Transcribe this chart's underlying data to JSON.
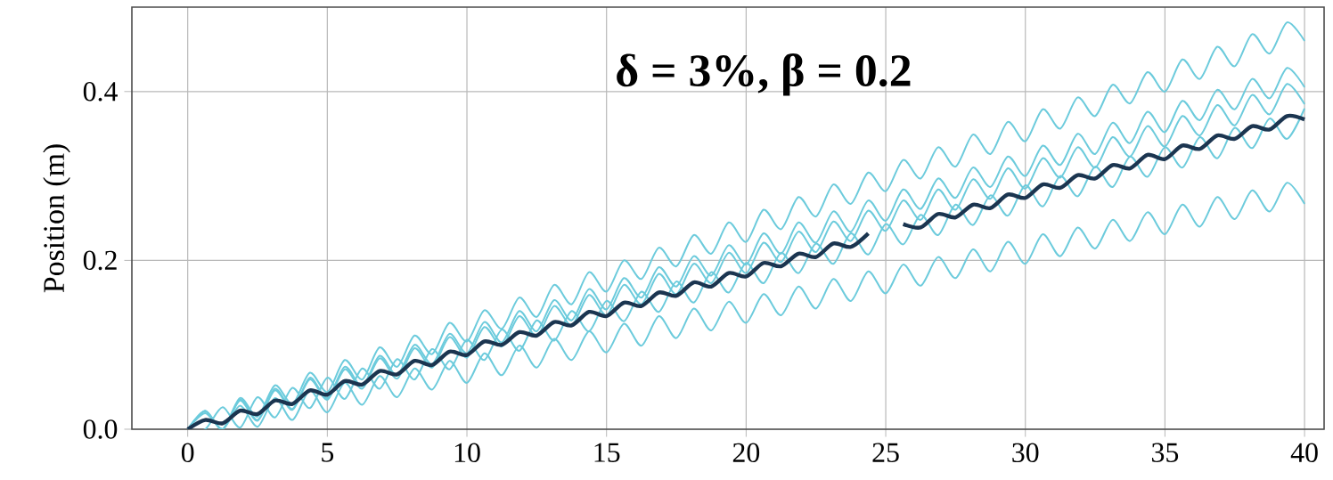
{
  "chart_data": {
    "type": "line",
    "xlabel": null,
    "ylabel": "Position (m)",
    "annotations": [
      "δ = 3%, β = 0.2"
    ],
    "xlim": [
      -2,
      40.7
    ],
    "ylim": [
      0,
      0.5
    ],
    "xticks": [
      0,
      5,
      10,
      15,
      20,
      25,
      30,
      35,
      40
    ],
    "yticks": [
      {
        "value": 0,
        "label": "0.0"
      },
      0.2,
      0.4
    ],
    "grid": true,
    "x": [
      0,
      0.625,
      1.25,
      1.875,
      2.5,
      3.125,
      3.75,
      4.375,
      5,
      5.625,
      6.25,
      6.875,
      7.5,
      8.125,
      8.75,
      9.375,
      10,
      10.625,
      11.25,
      11.875,
      12.5,
      13.125,
      13.75,
      14.375,
      15,
      15.625,
      16.25,
      16.875,
      17.5,
      18.125,
      18.75,
      19.375,
      20,
      20.625,
      21.25,
      21.875,
      22.5,
      23.125,
      23.75,
      24.375,
      25,
      25.625,
      26.25,
      26.875,
      27.5,
      28.125,
      28.75,
      29.375,
      30,
      30.625,
      31.25,
      31.875,
      32.5,
      33.125,
      33.75,
      34.375,
      35,
      35.625,
      36.25,
      36.875,
      37.5,
      38.125,
      38.75,
      39.375,
      40
    ],
    "series": [
      {
        "color": "#6ccbdc",
        "values": [
          0,
          0.022,
          0.0,
          0.037,
          0.015,
          0.052,
          0.03,
          0.067,
          0.044,
          0.082,
          0.059,
          0.097,
          0.074,
          0.111,
          0.089,
          0.126,
          0.104,
          0.141,
          0.119,
          0.156,
          0.133,
          0.171,
          0.148,
          0.186,
          0.163,
          0.2,
          0.178,
          0.215,
          0.193,
          0.23,
          0.208,
          0.245,
          0.222,
          0.26,
          0.237,
          0.275,
          0.252,
          0.29,
          0.267,
          0.304,
          0.282,
          0.319,
          0.297,
          0.334,
          0.311,
          0.349,
          0.326,
          0.364,
          0.341,
          0.379,
          0.356,
          0.393,
          0.371,
          0.408,
          0.386,
          0.423,
          0.4,
          0.438,
          0.415,
          0.453,
          0.43,
          0.468,
          0.445,
          0.482,
          0.46
        ]
      },
      {
        "color": "#6ccbdc",
        "values": [
          0,
          0.022,
          0.0,
          0.035,
          0.011,
          0.048,
          0.024,
          0.061,
          0.037,
          0.074,
          0.051,
          0.087,
          0.064,
          0.1,
          0.077,
          0.113,
          0.09,
          0.127,
          0.103,
          0.14,
          0.116,
          0.153,
          0.129,
          0.166,
          0.142,
          0.179,
          0.156,
          0.192,
          0.169,
          0.205,
          0.182,
          0.218,
          0.195,
          0.232,
          0.208,
          0.245,
          0.221,
          0.258,
          0.234,
          0.271,
          0.247,
          0.284,
          0.261,
          0.297,
          0.274,
          0.31,
          0.287,
          0.323,
          0.3,
          0.336,
          0.313,
          0.35,
          0.326,
          0.363,
          0.339,
          0.376,
          0.352,
          0.389,
          0.366,
          0.402,
          0.379,
          0.415,
          0.392,
          0.428,
          0.405
        ]
      },
      {
        "color": "#6ccbdc",
        "values": [
          0,
          0.021,
          0.0,
          0.034,
          0.01,
          0.046,
          0.023,
          0.059,
          0.035,
          0.071,
          0.048,
          0.084,
          0.06,
          0.096,
          0.073,
          0.109,
          0.085,
          0.121,
          0.098,
          0.134,
          0.11,
          0.146,
          0.123,
          0.159,
          0.135,
          0.171,
          0.148,
          0.184,
          0.16,
          0.196,
          0.173,
          0.209,
          0.185,
          0.221,
          0.198,
          0.234,
          0.21,
          0.246,
          0.223,
          0.259,
          0.235,
          0.271,
          0.248,
          0.284,
          0.26,
          0.296,
          0.273,
          0.309,
          0.285,
          0.321,
          0.298,
          0.334,
          0.31,
          0.346,
          0.323,
          0.359,
          0.335,
          0.371,
          0.348,
          0.384,
          0.36,
          0.396,
          0.373,
          0.409,
          0.385
        ]
      },
      {
        "color": "#6ccbdc",
        "values": [
          0,
          0.0,
          0.026,
          0.002,
          0.038,
          0.014,
          0.049,
          0.025,
          0.061,
          0.036,
          0.072,
          0.048,
          0.083,
          0.059,
          0.095,
          0.071,
          0.106,
          0.082,
          0.118,
          0.093,
          0.129,
          0.105,
          0.14,
          0.116,
          0.152,
          0.128,
          0.163,
          0.139,
          0.175,
          0.15,
          0.186,
          0.162,
          0.197,
          0.173,
          0.209,
          0.185,
          0.22,
          0.196,
          0.232,
          0.207,
          0.243,
          0.219,
          0.254,
          0.23,
          0.266,
          0.242,
          0.277,
          0.253,
          0.289,
          0.264,
          0.3,
          0.276,
          0.311,
          0.287,
          0.323,
          0.299,
          0.334,
          0.31,
          0.346,
          0.321,
          0.357,
          0.333,
          0.368,
          0.344,
          0.38
        ]
      },
      {
        "color": "#6ccbdc",
        "values": [
          0,
          0.019,
          0.0,
          0.028,
          0.003,
          0.037,
          0.011,
          0.046,
          0.02,
          0.055,
          0.029,
          0.063,
          0.038,
          0.072,
          0.047,
          0.081,
          0.055,
          0.09,
          0.064,
          0.099,
          0.073,
          0.107,
          0.082,
          0.116,
          0.091,
          0.125,
          0.099,
          0.134,
          0.108,
          0.143,
          0.117,
          0.151,
          0.126,
          0.16,
          0.135,
          0.169,
          0.143,
          0.178,
          0.152,
          0.187,
          0.161,
          0.195,
          0.17,
          0.204,
          0.179,
          0.213,
          0.187,
          0.222,
          0.196,
          0.231,
          0.205,
          0.239,
          0.214,
          0.248,
          0.223,
          0.257,
          0.231,
          0.266,
          0.24,
          0.275,
          0.249,
          0.283,
          0.258,
          0.292,
          0.267
        ]
      },
      {
        "color": "#1b3550",
        "values": [
          0,
          0.011,
          0.007,
          0.022,
          0.018,
          0.034,
          0.03,
          0.046,
          0.041,
          0.057,
          0.053,
          0.069,
          0.065,
          0.081,
          0.076,
          0.092,
          0.088,
          0.104,
          0.1,
          0.115,
          0.111,
          0.127,
          0.123,
          0.139,
          0.134,
          0.15,
          0.146,
          0.162,
          0.158,
          0.174,
          0.169,
          0.185,
          0.181,
          0.197,
          0.193,
          0.208,
          0.204,
          0.22,
          0.216,
          0.232,
          null,
          0.243,
          0.239,
          0.255,
          0.251,
          0.266,
          0.262,
          0.278,
          0.274,
          0.29,
          0.286,
          0.301,
          0.297,
          0.313,
          0.309,
          0.325,
          0.32,
          0.336,
          0.332,
          0.348,
          0.344,
          0.359,
          0.355,
          0.371,
          0.367
        ]
      }
    ]
  }
}
